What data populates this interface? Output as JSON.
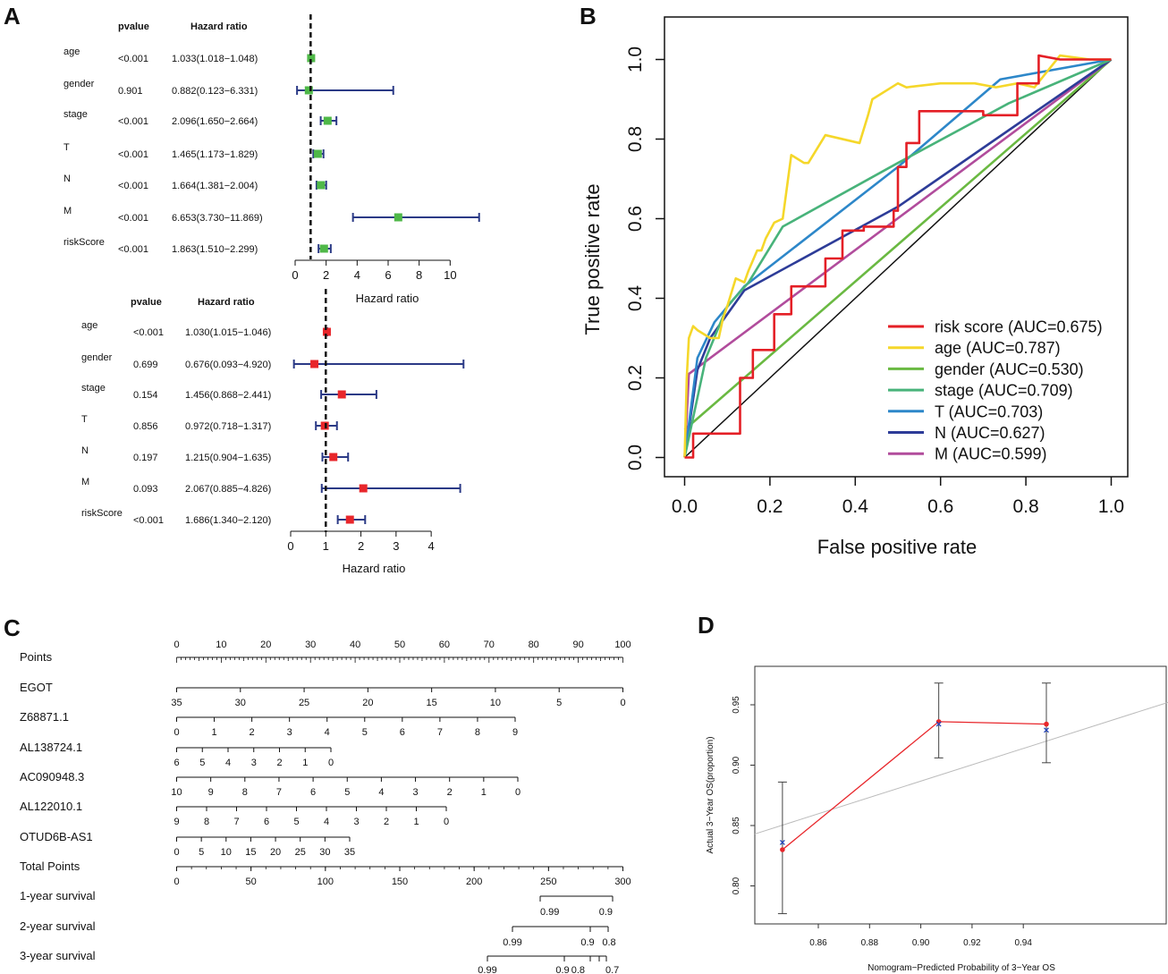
{
  "panels": {
    "a": "A",
    "b": "B",
    "c": "C",
    "d": "D"
  },
  "colors": {
    "forest_ci": "#2b3a86",
    "forest_uni_marker": "#4fb848",
    "forest_multi_marker": "#e8262b",
    "roc": [
      "#e41f26",
      "#f5d72a",
      "#6ab942",
      "#48b37a",
      "#2d87c9",
      "#2d3c98",
      "#b14c9c"
    ],
    "calib_line": "#e8262b",
    "calib_x": "#2244bb",
    "calib_ideal": "#bbbbbb"
  },
  "chart_data": [
    {
      "type": "forest",
      "name": "univariate",
      "header_pvalue": "pvalue",
      "header_hr": "Hazard ratio",
      "xlabel": "Hazard ratio",
      "xlim": [
        0,
        12
      ],
      "ticks": [
        0,
        2,
        4,
        6,
        8,
        10
      ],
      "ref_line": 1,
      "rows": [
        {
          "label": "age",
          "pvalue": "<0.001",
          "hr_text": "1.033(1.018−1.048)",
          "hr": 1.033,
          "lo": 1.018,
          "hi": 1.048
        },
        {
          "label": "gender",
          "pvalue": "0.901",
          "hr_text": "0.882(0.123−6.331)",
          "hr": 0.882,
          "lo": 0.123,
          "hi": 6.331
        },
        {
          "label": "stage",
          "pvalue": "<0.001",
          "hr_text": "2.096(1.650−2.664)",
          "hr": 2.096,
          "lo": 1.65,
          "hi": 2.664
        },
        {
          "label": "T",
          "pvalue": "<0.001",
          "hr_text": "1.465(1.173−1.829)",
          "hr": 1.465,
          "lo": 1.173,
          "hi": 1.829
        },
        {
          "label": "N",
          "pvalue": "<0.001",
          "hr_text": "1.664(1.381−2.004)",
          "hr": 1.664,
          "lo": 1.381,
          "hi": 2.004
        },
        {
          "label": "M",
          "pvalue": "<0.001",
          "hr_text": "6.653(3.730−11.869)",
          "hr": 6.653,
          "lo": 3.73,
          "hi": 11.869
        },
        {
          "label": "riskScore",
          "pvalue": "<0.001",
          "hr_text": "1.863(1.510−2.299)",
          "hr": 1.863,
          "lo": 1.51,
          "hi": 2.299
        }
      ]
    },
    {
      "type": "forest",
      "name": "multivariate",
      "header_pvalue": "pvalue",
      "header_hr": "Hazard ratio",
      "xlabel": "Hazard ratio",
      "xlim": [
        0,
        4.2
      ],
      "ticks": [
        0,
        1,
        2,
        3,
        4
      ],
      "ref_line": 1,
      "rows": [
        {
          "label": "age",
          "pvalue": "<0.001",
          "hr_text": "1.030(1.015−1.046)",
          "hr": 1.03,
          "lo": 1.015,
          "hi": 1.046
        },
        {
          "label": "gender",
          "pvalue": "0.699",
          "hr_text": "0.676(0.093−4.920)",
          "hr": 0.676,
          "lo": 0.093,
          "hi": 4.92
        },
        {
          "label": "stage",
          "pvalue": "0.154",
          "hr_text": "1.456(0.868−2.441)",
          "hr": 1.456,
          "lo": 0.868,
          "hi": 2.441
        },
        {
          "label": "T",
          "pvalue": "0.856",
          "hr_text": "0.972(0.718−1.317)",
          "hr": 0.972,
          "lo": 0.718,
          "hi": 1.317
        },
        {
          "label": "N",
          "pvalue": "0.197",
          "hr_text": "1.215(0.904−1.635)",
          "hr": 1.215,
          "lo": 0.904,
          "hi": 1.635
        },
        {
          "label": "M",
          "pvalue": "0.093",
          "hr_text": "2.067(0.885−4.826)",
          "hr": 2.067,
          "lo": 0.885,
          "hi": 4.826
        },
        {
          "label": "riskScore",
          "pvalue": "<0.001",
          "hr_text": "1.686(1.340−2.120)",
          "hr": 1.686,
          "lo": 1.34,
          "hi": 2.12
        }
      ]
    },
    {
      "type": "line",
      "name": "roc",
      "xlabel": "False positive rate",
      "ylabel": "True positive rate",
      "xlim": [
        0,
        1
      ],
      "ylim": [
        0,
        1
      ],
      "ticks": [
        "0.0",
        "0.2",
        "0.4",
        "0.6",
        "0.8",
        "1.0"
      ],
      "legend_position": "bottom-right",
      "series": [
        {
          "name": "risk score (AUC=0.675)",
          "x": [
            0,
            0.02,
            0.02,
            0.13,
            0.13,
            0.16,
            0.16,
            0.21,
            0.21,
            0.25,
            0.25,
            0.33,
            0.33,
            0.37,
            0.37,
            0.42,
            0.42,
            0.49,
            0.49,
            0.5,
            0.5,
            0.52,
            0.52,
            0.55,
            0.55,
            0.7,
            0.7,
            0.78,
            0.78,
            0.83,
            0.83,
            0.88,
            1
          ],
          "y": [
            0,
            0,
            0.06,
            0.06,
            0.2,
            0.2,
            0.27,
            0.27,
            0.36,
            0.36,
            0.43,
            0.43,
            0.5,
            0.5,
            0.57,
            0.57,
            0.58,
            0.58,
            0.62,
            0.62,
            0.73,
            0.73,
            0.79,
            0.79,
            0.87,
            0.87,
            0.86,
            0.86,
            0.94,
            0.94,
            1.01,
            1.0,
            1.0
          ]
        },
        {
          "name": "age (AUC=0.787)",
          "x": [
            0,
            0.005,
            0.01,
            0.02,
            0.03,
            0.06,
            0.08,
            0.09,
            0.1,
            0.12,
            0.14,
            0.15,
            0.17,
            0.18,
            0.19,
            0.21,
            0.23,
            0.25,
            0.28,
            0.29,
            0.33,
            0.41,
            0.43,
            0.44,
            0.5,
            0.52,
            0.6,
            0.68,
            0.73,
            0.78,
            0.82,
            0.88,
            0.95,
            1
          ],
          "y": [
            0,
            0.2,
            0.3,
            0.33,
            0.32,
            0.3,
            0.3,
            0.35,
            0.38,
            0.45,
            0.44,
            0.47,
            0.52,
            0.52,
            0.55,
            0.59,
            0.6,
            0.76,
            0.74,
            0.74,
            0.81,
            0.79,
            0.86,
            0.9,
            0.94,
            0.93,
            0.94,
            0.94,
            0.93,
            0.94,
            0.93,
            1.01,
            1.0,
            1.0
          ]
        },
        {
          "name": "gender (AUC=0.530)",
          "x": [
            0,
            1
          ],
          "y": [
            0.07,
            1
          ]
        },
        {
          "name": "stage (AUC=0.709)",
          "x": [
            0,
            0.05,
            0.1,
            0.15,
            0.23,
            0.5,
            0.76,
            1
          ],
          "y": [
            0,
            0.25,
            0.38,
            0.44,
            0.58,
            0.74,
            0.89,
            1
          ]
        },
        {
          "name": "T (AUC=0.703)",
          "x": [
            0,
            0.03,
            0.07,
            0.14,
            0.5,
            0.74,
            1
          ],
          "y": [
            0,
            0.25,
            0.34,
            0.43,
            0.73,
            0.95,
            1
          ]
        },
        {
          "name": "N (AUC=0.627)",
          "x": [
            0,
            0.03,
            0.06,
            0.14,
            0.5,
            1
          ],
          "y": [
            0,
            0.22,
            0.3,
            0.42,
            0.63,
            1
          ]
        },
        {
          "name": "M (AUC=0.599)",
          "x": [
            0,
            0.01,
            1
          ],
          "y": [
            0,
            0.21,
            1
          ]
        }
      ]
    },
    {
      "type": "nomogram",
      "name": "nomogram",
      "rows": [
        {
          "label": "Points",
          "ticks": [
            "0",
            "10",
            "20",
            "30",
            "40",
            "50",
            "60",
            "70",
            "80",
            "90",
            "100"
          ]
        },
        {
          "label": "EGOT",
          "ticks": [
            "35",
            "30",
            "25",
            "20",
            "15",
            "10",
            "5",
            "0"
          ]
        },
        {
          "label": "Z68871.1",
          "ticks": [
            "0",
            "1",
            "2",
            "3",
            "4",
            "5",
            "6",
            "7",
            "8",
            "9"
          ]
        },
        {
          "label": "AL138724.1",
          "ticks": [
            "6",
            "5",
            "4",
            "3",
            "2",
            "1",
            "0"
          ]
        },
        {
          "label": "AC090948.3",
          "ticks": [
            "10",
            "9",
            "8",
            "7",
            "6",
            "5",
            "4",
            "3",
            "2",
            "1",
            "0"
          ]
        },
        {
          "label": "AL122010.1",
          "ticks": [
            "9",
            "8",
            "7",
            "6",
            "5",
            "4",
            "3",
            "2",
            "1",
            "0"
          ]
        },
        {
          "label": "OTUD6B-AS1",
          "ticks": [
            "0",
            "5",
            "10",
            "15",
            "20",
            "25",
            "30",
            "35"
          ]
        },
        {
          "label": "Total Points",
          "ticks": [
            "0",
            "50",
            "100",
            "150",
            "200",
            "250",
            "300"
          ]
        },
        {
          "label": "1-year survival",
          "ticks": [
            "0.99",
            "0.9"
          ]
        },
        {
          "label": "2-year survival",
          "ticks": [
            "0.99",
            "0.9",
            "0.8"
          ]
        },
        {
          "label": "3-year survival",
          "ticks": [
            "0.99",
            "0.9",
            "0.8",
            "0.7"
          ]
        }
      ]
    },
    {
      "type": "line",
      "name": "calibration",
      "xlabel": "Nomogram−Predicted Probability of 3−Year OS",
      "ylabel": "Actual 3−Year OS(proportion)",
      "xlim": [
        0.843,
        0.951
      ],
      "ylim": [
        0.77,
        0.975
      ],
      "xticks": [
        "0.86",
        "0.88",
        "0.90",
        "0.92",
        "0.94"
      ],
      "yticks": [
        "0.80",
        "0.85",
        "0.90",
        "0.95"
      ],
      "points": [
        {
          "x": 0.846,
          "y": 0.83,
          "lo": 0.777,
          "hi": 0.886,
          "xmark": 0.836
        },
        {
          "x": 0.907,
          "y": 0.936,
          "lo": 0.906,
          "hi": 0.968,
          "xmark": 0.934
        },
        {
          "x": 0.949,
          "y": 0.934,
          "lo": 0.902,
          "hi": 0.968,
          "xmark": 0.929
        }
      ]
    }
  ]
}
